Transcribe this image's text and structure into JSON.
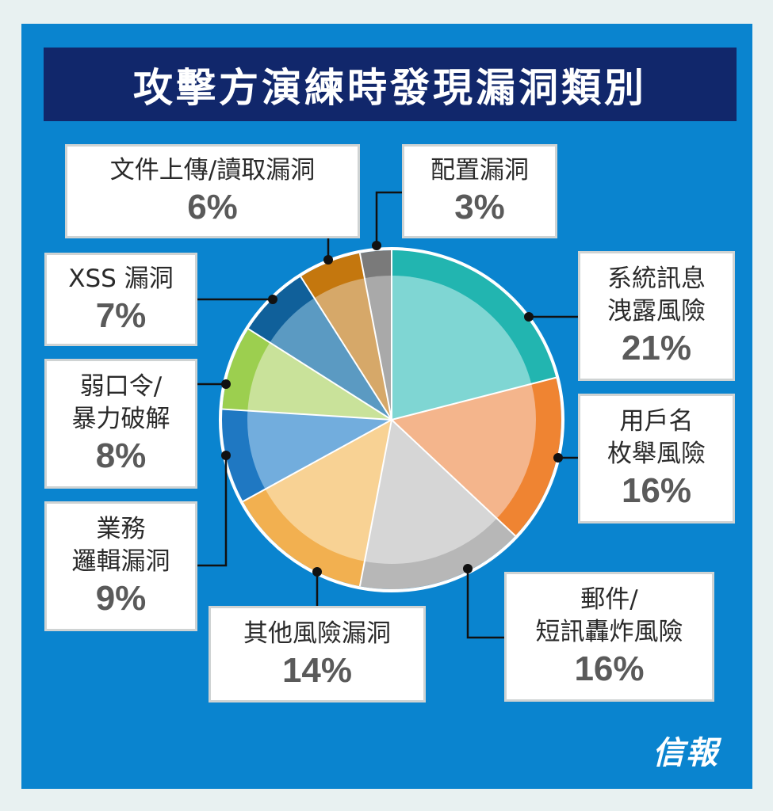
{
  "chart_data": {
    "type": "pie",
    "title": "攻擊方演練時發現漏洞類別",
    "slices": [
      {
        "lines": [
          "系統訊息",
          "洩露風險"
        ],
        "value": 21,
        "value_label": "21%",
        "outer": "#22b5b0",
        "inner": "#7fd6d3"
      },
      {
        "lines": [
          "用戶名",
          "枚舉風險"
        ],
        "value": 16,
        "value_label": "16%",
        "outer": "#ef8432",
        "inner": "#f4b58c"
      },
      {
        "lines": [
          "郵件/",
          "短訊轟炸風險"
        ],
        "value": 16,
        "value_label": "16%",
        "outer": "#b7b7b7",
        "inner": "#d6d6d6"
      },
      {
        "lines": [
          "其他風險漏洞"
        ],
        "value": 14,
        "value_label": "14%",
        "outer": "#f2b050",
        "inner": "#f8d294"
      },
      {
        "lines": [
          "業務",
          "邏輯漏洞"
        ],
        "value": 9,
        "value_label": "9%",
        "outer": "#1f78c2",
        "inner": "#72addd"
      },
      {
        "lines": [
          "弱口令/",
          "暴力破解"
        ],
        "value": 8,
        "value_label": "8%",
        "outer": "#9ccf4f",
        "inner": "#c9e29a"
      },
      {
        "lines": [
          "XSS 漏洞"
        ],
        "value": 7,
        "value_label": "7%",
        "outer": "#10609a",
        "inner": "#5b9ac2"
      },
      {
        "lines": [
          "文件上傳/讀取漏洞"
        ],
        "value": 6,
        "value_label": "6%",
        "outer": "#c4770e",
        "inner": "#d6a869"
      },
      {
        "lines": [
          "配置漏洞"
        ],
        "value": 3,
        "value_label": "3%",
        "outer": "#7a7a7a",
        "inner": "#a9a9a9"
      }
    ]
  },
  "branding": {
    "logo_text": "信報"
  }
}
